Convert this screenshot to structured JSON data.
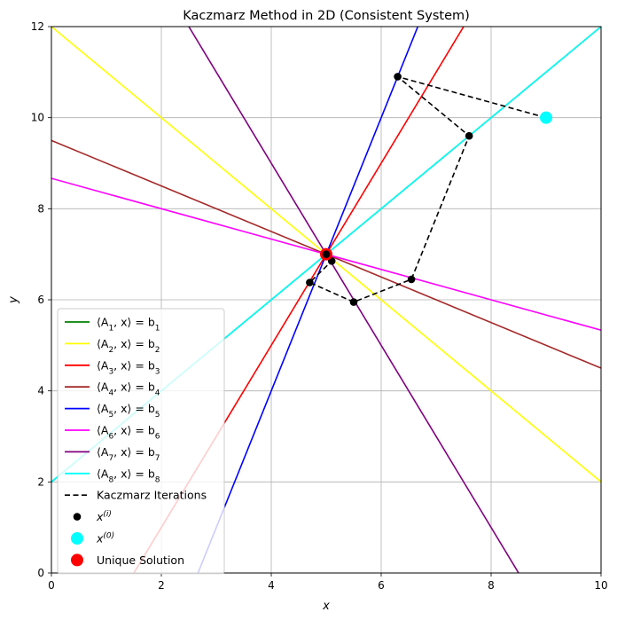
{
  "chart_data": {
    "type": "line",
    "title": "Kaczmarz Method in 2D (Consistent System)",
    "xlabel": "x",
    "ylabel": "y",
    "xlim": [
      0,
      10
    ],
    "ylim": [
      0,
      12
    ],
    "xticks": [
      0,
      2,
      4,
      6,
      8,
      10
    ],
    "yticks": [
      0,
      2,
      4,
      6,
      8,
      10,
      12
    ],
    "grid": true,
    "legend_position": "lower-left",
    "lines": [
      {
        "name": "A1",
        "label_sub": "1",
        "color": "#008000",
        "x": [
          0,
          10
        ],
        "y": [
          2,
          12
        ]
      },
      {
        "name": "A2",
        "label_sub": "2",
        "color": "#ffff00",
        "x": [
          0,
          10
        ],
        "y": [
          12,
          2
        ]
      },
      {
        "name": "A3",
        "label_sub": "3",
        "color": "#ff0000",
        "x": [
          1.5,
          7.5
        ],
        "y": [
          0,
          12
        ]
      },
      {
        "name": "A4",
        "label_sub": "4",
        "color": "#a52a2a",
        "x": [
          0,
          10
        ],
        "y": [
          9.5,
          4.5
        ]
      },
      {
        "name": "A5",
        "label_sub": "5",
        "color": "#0000ff",
        "x": [
          2.6667,
          6.6667
        ],
        "y": [
          0,
          12
        ]
      },
      {
        "name": "A6",
        "label_sub": "6",
        "color": "#ff00ff",
        "x": [
          0,
          10
        ],
        "y": [
          8.667,
          5.333
        ]
      },
      {
        "name": "A7",
        "label_sub": "7",
        "color": "#800080",
        "x": [
          2.5,
          8.5
        ],
        "y": [
          12,
          0
        ]
      },
      {
        "name": "A8",
        "label_sub": "8",
        "color": "#00ffff",
        "x": [
          0,
          10
        ],
        "y": [
          2,
          12
        ]
      }
    ],
    "iterations": {
      "name": "Kaczmarz Iterations",
      "color": "#000000",
      "x": [
        9.0,
        6.3,
        7.6,
        6.55,
        5.5,
        4.7,
        5.1,
        5.0
      ],
      "y": [
        10.0,
        10.9,
        9.6,
        6.45,
        5.95,
        6.38,
        6.85,
        7.0
      ]
    },
    "initial_point": {
      "name": "x^(0)",
      "color": "#00ffff",
      "x": 9.0,
      "y": 10.0
    },
    "solution": {
      "name": "Unique Solution",
      "color": "#ff0000",
      "x": 5.0,
      "y": 7.0
    },
    "legend": {
      "iter_label": "Kaczmarz Iterations",
      "points_label": "x",
      "points_sup": "(i)",
      "init_label": "x",
      "init_sup": "(0)",
      "solution_label": "Unique Solution"
    }
  }
}
